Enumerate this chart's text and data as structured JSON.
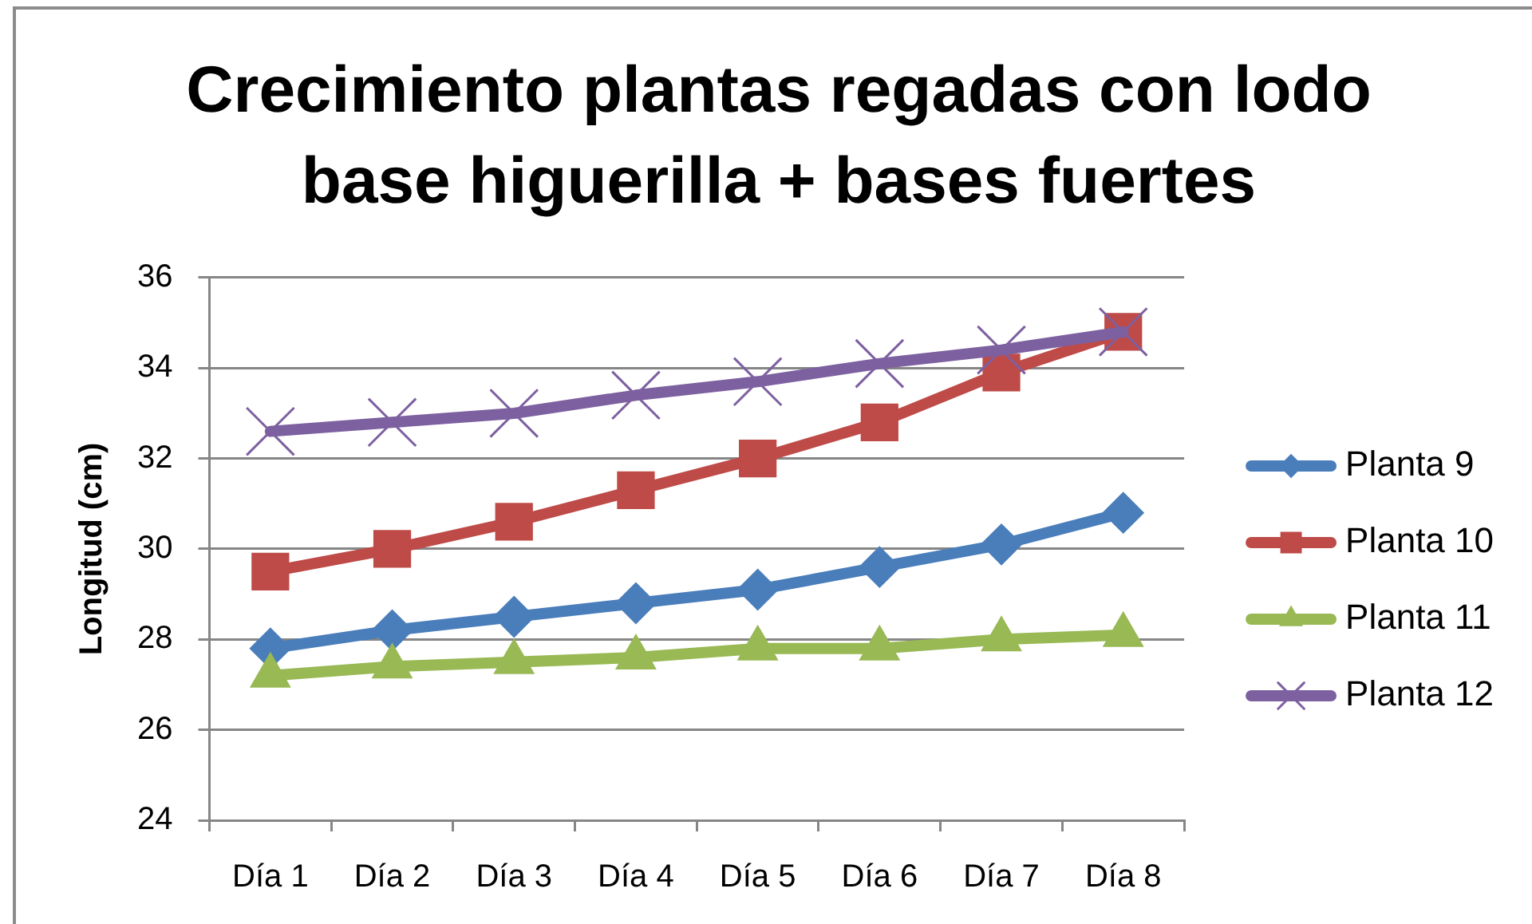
{
  "chart_data": {
    "type": "line",
    "title": "Crecimiento plantas regadas con lodo base higuerilla + bases fuertes",
    "ylabel": "Longitud (cm)",
    "categories": [
      "Día 1",
      "Día 2",
      "Día 3",
      "Día 4",
      "Día 5",
      "Día 6",
      "Día 7",
      "Día 8"
    ],
    "series": [
      {
        "name": "Planta 9",
        "color": "#4a7ebb",
        "marker": "diamond",
        "values": [
          27.8,
          28.2,
          28.5,
          28.8,
          29.1,
          29.6,
          30.1,
          30.8
        ]
      },
      {
        "name": "Planta 10",
        "color": "#be4b48",
        "marker": "square",
        "values": [
          29.5,
          30.0,
          30.6,
          31.3,
          32.0,
          32.8,
          33.9,
          34.8
        ]
      },
      {
        "name": "Planta 11",
        "color": "#98b954",
        "marker": "triangle",
        "values": [
          27.2,
          27.4,
          27.5,
          27.6,
          27.8,
          27.8,
          28.0,
          28.1
        ]
      },
      {
        "name": "Planta 12",
        "color": "#7d60a0",
        "marker": "cross",
        "values": [
          32.6,
          32.8,
          33.0,
          33.4,
          33.7,
          34.1,
          34.4,
          34.8
        ]
      }
    ],
    "ylim": [
      24,
      36
    ],
    "yticks": [
      24,
      26,
      28,
      30,
      32,
      34,
      36
    ],
    "grid": "y",
    "legend": "right",
    "line_style": "solid"
  }
}
